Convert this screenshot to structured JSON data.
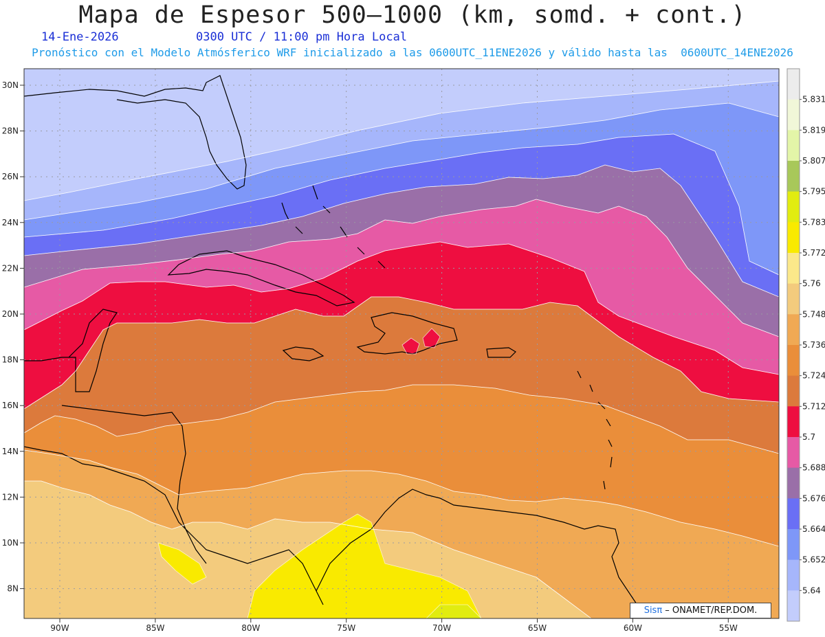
{
  "header": {
    "title": "Mapa de Espesor 500—1000 (km, somd. + cont.)",
    "date": "14-Ene-2026",
    "time": "0300 UTC / 11:00 pm Hora Local",
    "forecast": "Pronóstico con el Modelo Atmósferico WRF inicializado a las 0600UTC_11ENE2026 y válido hasta las  0600UTC_14ENE2026"
  },
  "axes": {
    "lat_labels": [
      "30N",
      "28N",
      "26N",
      "24N",
      "22N",
      "20N",
      "18N",
      "16N",
      "14N",
      "12N",
      "10N",
      "8N"
    ],
    "lon_labels": [
      "90W",
      "85W",
      "80W",
      "75W",
      "70W",
      "65W",
      "60W",
      "55W"
    ]
  },
  "colorbar": {
    "labels": [
      "5.64",
      "5.652",
      "5.664",
      "5.676",
      "5.688",
      "5.7",
      "5.712",
      "5.724",
      "5.736",
      "5.748",
      "5.76",
      "5.772",
      "5.783",
      "5.795",
      "5.807",
      "5.819",
      "5.831"
    ],
    "colors": [
      "#c3cdfc",
      "#a6b6fb",
      "#7e97f8",
      "#6a6ff5",
      "#9a6fa8",
      "#e65aa5",
      "#ee0e40",
      "#dc7a3c",
      "#ea8e3a",
      "#f0a954",
      "#f3cb7d",
      "#fbe88a",
      "#f9ea00",
      "#e1ec10",
      "#a8c85a",
      "#e3f5a8",
      "#f1f7d8",
      "#ececec"
    ]
  },
  "credit": {
    "brand": "Sisπ",
    "org": " –  ONAMET/REP.DOM."
  }
}
